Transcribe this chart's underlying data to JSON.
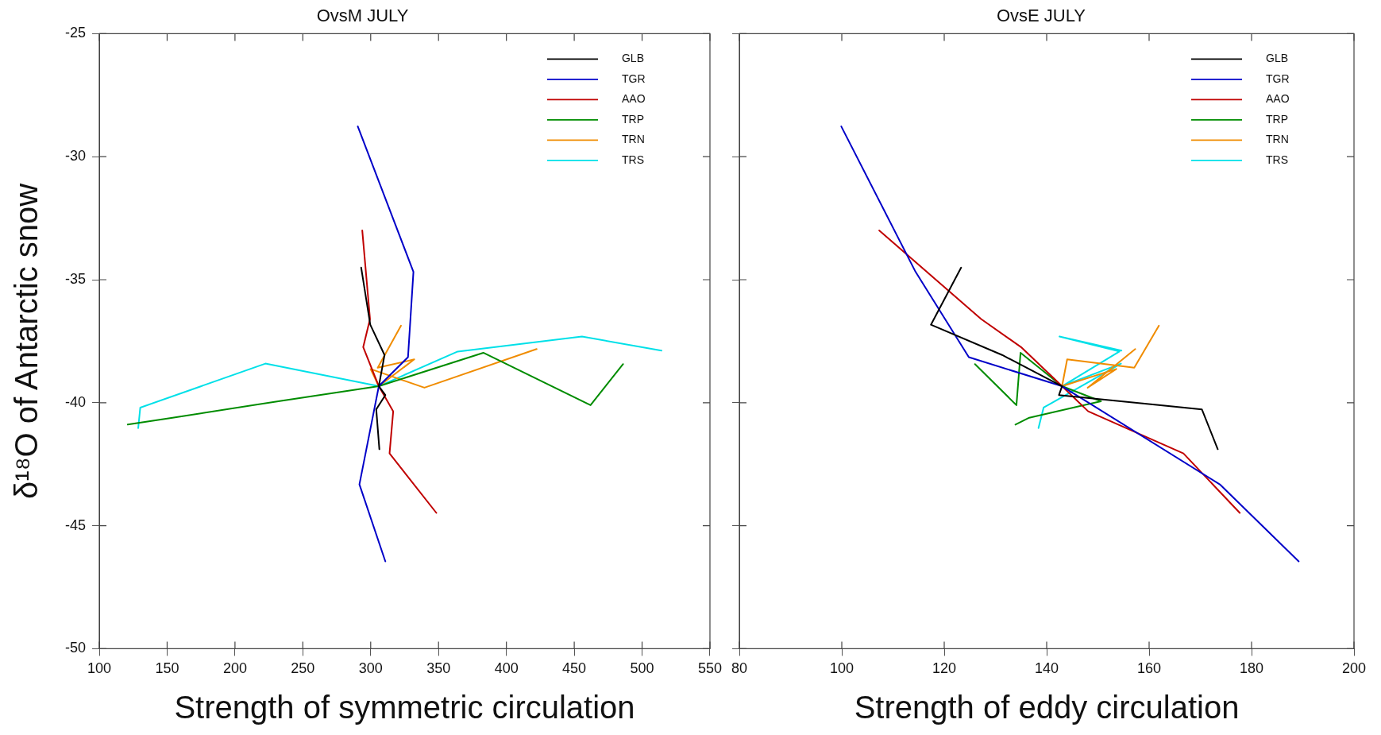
{
  "chart_data": [
    {
      "type": "line",
      "title": "OvsM JULY",
      "xlabel": "Strength of symmetric circulation",
      "ylabel": "δ¹⁸O of Antarctic snow",
      "xlim": [
        100,
        550
      ],
      "xticks": [
        100,
        150,
        200,
        250,
        300,
        350,
        400,
        450,
        500,
        550
      ],
      "ylim": [
        -50,
        -25
      ],
      "yticks": [
        -50,
        -45,
        -40,
        -35,
        -30,
        -25
      ],
      "legend": "top right",
      "grid": false,
      "series": [
        {
          "name": "GLB",
          "color": "#000000",
          "x": [
            293,
            299.7,
            310.2,
            306,
            310.8,
            304.1,
            306.4
          ],
          "values": [
            -34.51,
            -36.83,
            -38.06,
            -39.33,
            -39.69,
            -40.27,
            -41.89
          ]
        },
        {
          "name": "TGR",
          "color": "#0000c8",
          "x": [
            290.5,
            331.5,
            327.5,
            306,
            291.7,
            310.8
          ],
          "values": [
            -28.77,
            -34.68,
            -38.15,
            -39.33,
            -43.32,
            -46.45
          ]
        },
        {
          "name": "AAO",
          "color": "#c00000",
          "x": [
            293.8,
            299.5,
            294.5,
            306,
            316.6,
            313.9,
            348.4
          ],
          "values": [
            -33,
            -36.6,
            -37.74,
            -39.33,
            -40.35,
            -42.06,
            -44.48
          ]
        },
        {
          "name": "TRP",
          "color": "#008c00",
          "x": [
            121,
            154,
            232,
            306,
            383,
            462,
            486
          ],
          "values": [
            -40.89,
            -40.61,
            -39.94,
            -39.33,
            -37.97,
            -40.1,
            -38.43
          ]
        },
        {
          "name": "TRN",
          "color": "#f08c00",
          "x": [
            322.3,
            305.2,
            332.1,
            306,
            299.9,
            339.6,
            422.3
          ],
          "values": [
            -36.87,
            -38.58,
            -38.24,
            -39.33,
            -38.63,
            -39.39,
            -37.82
          ]
        },
        {
          "name": "TRS",
          "color": "#00e0e8",
          "x": [
            128.7,
            130.2,
            222.4,
            306,
            364.1,
            455.7,
            514.3
          ],
          "values": [
            -41.03,
            -40.2,
            -38.41,
            -39.33,
            -37.92,
            -37.31,
            -37.88
          ]
        }
      ]
    },
    {
      "type": "line",
      "title": "OvsE JULY",
      "xlabel": "Strength of eddy circulation",
      "xlim": [
        80,
        200
      ],
      "xticks": [
        80,
        100,
        120,
        140,
        160,
        180,
        200
      ],
      "ylim": [
        -50,
        -25
      ],
      "yticks": [
        -50,
        -45,
        -40,
        -35,
        -30,
        -25
      ],
      "tick_labels": "x",
      "legend": "top right",
      "grid": false,
      "series": [
        {
          "name": "GLB",
          "color": "#000000",
          "x": [
            123.3,
            117.4,
            131.3,
            143,
            142.4,
            170.3,
            173.4
          ],
          "values": [
            -34.51,
            -36.83,
            -38.06,
            -39.33,
            -39.69,
            -40.27,
            -41.89
          ]
        },
        {
          "name": "TGR",
          "color": "#0000c8",
          "x": [
            99.9,
            114.4,
            124.8,
            143,
            173.8,
            189.2
          ],
          "values": [
            -28.77,
            -34.68,
            -38.15,
            -39.33,
            -43.32,
            -46.45
          ]
        },
        {
          "name": "AAO",
          "color": "#c00000",
          "x": [
            107.3,
            127.2,
            135,
            143,
            148.1,
            166.7,
            177.7
          ],
          "values": [
            -33,
            -36.6,
            -37.74,
            -39.33,
            -40.35,
            -42.06,
            -44.48
          ]
        },
        {
          "name": "TRP",
          "color": "#008c00",
          "x": [
            133.9,
            136.6,
            150.6,
            143,
            134.9,
            134.1,
            126
          ],
          "values": [
            -40.89,
            -40.61,
            -39.94,
            -39.33,
            -37.97,
            -40.1,
            -38.43
          ]
        },
        {
          "name": "TRN",
          "color": "#f08c00",
          "x": [
            161.9,
            157.1,
            144,
            143,
            153.6,
            148,
            157.3
          ],
          "values": [
            -36.87,
            -38.58,
            -38.24,
            -39.33,
            -38.63,
            -39.39,
            -37.82
          ]
        },
        {
          "name": "TRS",
          "color": "#00e0e8",
          "x": [
            138.4,
            139.4,
            154.5,
            143,
            154.2,
            142.5,
            154.6
          ],
          "values": [
            -41.03,
            -40.2,
            -38.41,
            -39.33,
            -37.92,
            -37.31,
            -37.88
          ]
        }
      ]
    }
  ]
}
